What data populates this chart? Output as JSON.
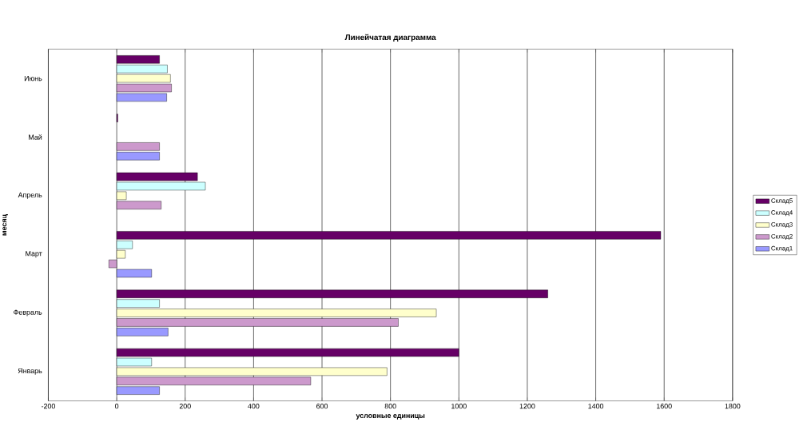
{
  "chart_data": {
    "type": "bar",
    "orientation": "horizontal",
    "title": "Линейчатая диаграмма",
    "xlabel": "условные единицы",
    "ylabel": "месяц",
    "categories": [
      "Июнь",
      "Май",
      "Апрель",
      "Март",
      "Февраль",
      "Январь"
    ],
    "series": [
      {
        "name": "Склад1",
        "color": "#9999ff",
        "values": [
          146,
          125,
          null,
          102,
          150,
          125
        ]
      },
      {
        "name": "Склад2",
        "color": "#cc99cc",
        "values": [
          160,
          125,
          130,
          -23,
          823,
          567
        ]
      },
      {
        "name": "Склад3",
        "color": "#ffffcc",
        "values": [
          157,
          null,
          28,
          25,
          934,
          790
        ]
      },
      {
        "name": "Склад4",
        "color": "#ccffff",
        "values": [
          148,
          null,
          259,
          46,
          125,
          102
        ]
      },
      {
        "name": "Склад5",
        "color": "#660066",
        "values": [
          125,
          3,
          236,
          1590,
          1260,
          1000
        ]
      }
    ],
    "xlim": [
      -200,
      1800
    ],
    "xticks": [
      -200,
      0,
      200,
      400,
      600,
      800,
      1000,
      1200,
      1400,
      1600,
      1800
    ],
    "grid": "x",
    "legend": "right"
  }
}
